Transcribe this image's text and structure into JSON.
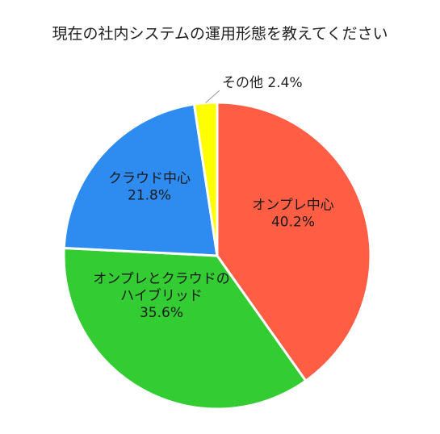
{
  "chart_data": {
    "type": "pie",
    "title": "現在の社内システムの運用形態を教えてください",
    "slices": [
      {
        "label": "オンプレ中心",
        "value": 40.2,
        "value_label": "40.2%",
        "color": "#FF5E45"
      },
      {
        "label": "オンプレとクラウドの\nハイブリッド",
        "value": 35.6,
        "value_label": "35.6%",
        "color": "#33CC33"
      },
      {
        "label": "クラウド中心",
        "value": 21.8,
        "value_label": "21.8%",
        "color": "#2E8CF0"
      },
      {
        "label": "その他",
        "value": 2.4,
        "value_label": "2.4%",
        "color": "#FFFF00"
      }
    ],
    "start": "top",
    "direction": "clockwise"
  }
}
